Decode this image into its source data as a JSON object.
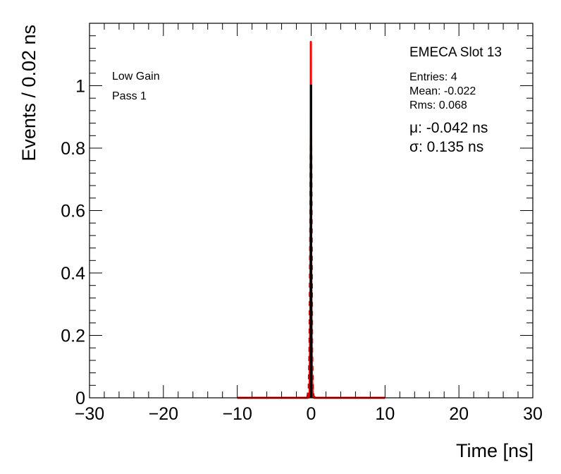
{
  "chart_data": {
    "type": "line",
    "xlabel": "Time [ns]",
    "ylabel": "Events / 0.02 ns",
    "xlim": [
      -30,
      30
    ],
    "ylim": [
      0,
      1.2
    ],
    "x_ticks": [
      -30,
      -20,
      -10,
      0,
      10,
      20,
      30
    ],
    "x_tick_labels": [
      "−30",
      "−20",
      "−10",
      "0",
      "10",
      "20",
      "30"
    ],
    "y_ticks": [
      0,
      0.2,
      0.4,
      0.6,
      0.8,
      1
    ],
    "y_tick_labels": [
      "0",
      "0.2",
      "0.4",
      "0.6",
      "0.8",
      "1"
    ],
    "grid": false,
    "series": [
      {
        "color": "#ff0000",
        "style": "solid",
        "x": [
          -10,
          -0.5,
          -0.3,
          -0.2,
          -0.1,
          -0.05,
          -0.042,
          -0.03,
          0.0,
          0.05,
          0.1,
          0.2,
          0.3,
          0.5,
          10
        ],
        "y": [
          0,
          0,
          0.002,
          0.02,
          0.3,
          0.85,
          1.14,
          0.9,
          0.5,
          0.25,
          0.08,
          0.01,
          0.001,
          0,
          0
        ]
      },
      {
        "color": "#cc0000",
        "style": "dashed",
        "x": [
          -0.5,
          -0.3,
          -0.2,
          -0.1,
          -0.05,
          -0.022,
          0.0,
          0.05,
          0.1,
          0.2,
          0.3,
          0.5
        ],
        "y": [
          0.001,
          0.03,
          0.15,
          0.5,
          0.75,
          0.83,
          0.75,
          0.5,
          0.15,
          0.03,
          0.005,
          0.001
        ]
      },
      {
        "color": "#000000",
        "style": "histogram",
        "x": [
          -0.03,
          -0.01
        ],
        "y": [
          1,
          1
        ]
      }
    ],
    "colors": {
      "fit": "#ff0000",
      "fit_dashed": "#cc0000",
      "histogram": "#000000"
    }
  },
  "annotations": {
    "gain": "Low Gain",
    "pass": "Pass 1",
    "slot": "EMECA Slot 13",
    "entries": "Entries: 4",
    "mean": "Mean: -0.022",
    "rms": "Rms: 0.068",
    "mu": "μ: -0.042 ns",
    "sigma": "σ: 0.135 ns"
  }
}
